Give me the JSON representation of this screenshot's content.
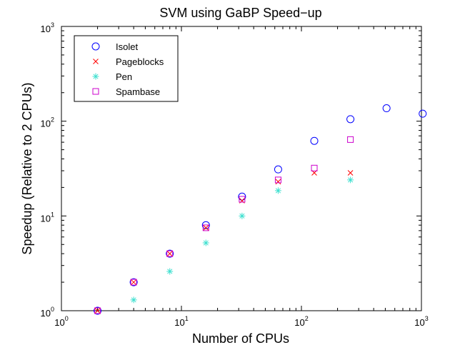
{
  "chart_data": {
    "type": "scatter",
    "title": "SVM using GaBP Speed−up",
    "xlabel": "Number of CPUs",
    "ylabel": "Speedup (Relative to 2 CPUs)",
    "xscale": "log",
    "yscale": "log",
    "xlim": [
      1,
      1000
    ],
    "ylim": [
      1,
      1000
    ],
    "grid": false,
    "legend_position": "top-left",
    "x_ticks": [
      {
        "base": "10",
        "exp": "0",
        "value": 1
      },
      {
        "base": "10",
        "exp": "1",
        "value": 10
      },
      {
        "base": "10",
        "exp": "2",
        "value": 100
      },
      {
        "base": "10",
        "exp": "3",
        "value": 1000
      }
    ],
    "y_ticks": [
      {
        "base": "10",
        "exp": "0",
        "value": 1
      },
      {
        "base": "10",
        "exp": "1",
        "value": 10
      },
      {
        "base": "10",
        "exp": "2",
        "value": 100
      },
      {
        "base": "10",
        "exp": "3",
        "value": 1000
      }
    ],
    "series": [
      {
        "name": "Isolet",
        "marker": "circle",
        "color": "#0000ff",
        "x": [
          2,
          4,
          8,
          16,
          32,
          64,
          128,
          256,
          512,
          1024
        ],
        "y": [
          1,
          2,
          4,
          8,
          16,
          31,
          62,
          105,
          137,
          120
        ]
      },
      {
        "name": "Pageblocks",
        "marker": "x",
        "color": "#ff0000",
        "x": [
          2,
          4,
          8,
          16,
          32,
          64,
          128,
          256
        ],
        "y": [
          1,
          2,
          4,
          7.5,
          14.5,
          23,
          28.5,
          28.5
        ]
      },
      {
        "name": "Pen",
        "marker": "star",
        "color": "#40e0d0",
        "x": [
          4,
          8,
          16,
          32,
          64,
          256
        ],
        "y": [
          1.3,
          2.6,
          5.2,
          10,
          18.5,
          24
        ]
      },
      {
        "name": "Spambase",
        "marker": "square",
        "color": "#cc00cc",
        "x": [
          2,
          4,
          8,
          16,
          32,
          64,
          128,
          256
        ],
        "y": [
          1,
          2,
          4,
          7.5,
          15,
          24,
          32,
          64
        ]
      }
    ]
  }
}
